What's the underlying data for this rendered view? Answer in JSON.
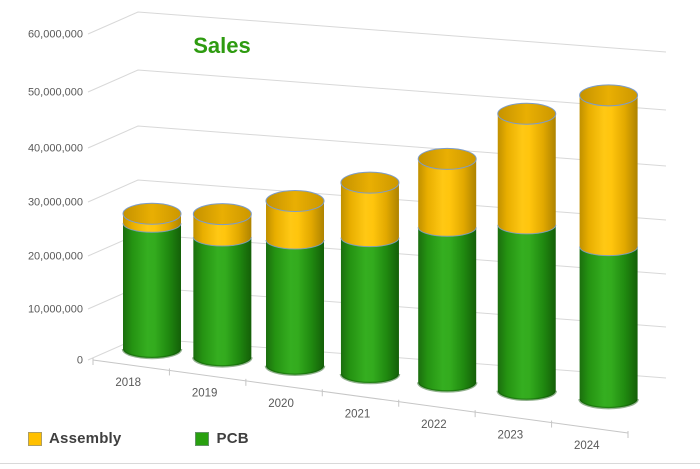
{
  "chart": {
    "title": "Sales",
    "title_color": "#2E9B10"
  },
  "chart_data": {
    "type": "bar",
    "subtype": "3d-stacked-cylinder",
    "title": "Sales",
    "categories": [
      "2018",
      "2019",
      "2020",
      "2021",
      "2022",
      "2023",
      "2024"
    ],
    "series": [
      {
        "name": "PCB",
        "color": "#2CA01C",
        "values": [
          23500000,
          22500000,
          23500000,
          25500000,
          29000000,
          31000000,
          28500000
        ]
      },
      {
        "name": "Assembly",
        "color": "#FFC000",
        "values": [
          1500000,
          4000000,
          7000000,
          10000000,
          12500000,
          20500000,
          28000000
        ]
      }
    ],
    "ylim": [
      0,
      60000000
    ],
    "ytick_interval": 10000000,
    "ytick_labels": [
      "0",
      "10,000,000",
      "20,000,000",
      "30,000,000",
      "40,000,000",
      "50,000,000",
      "60,000,000"
    ],
    "xlabel": "",
    "ylabel": "",
    "grid": true,
    "legend_position": "bottom-left"
  },
  "legend": {
    "items": [
      {
        "label": "Assembly",
        "color": "#FFC000"
      },
      {
        "label": "PCB",
        "color": "#28A00F"
      }
    ]
  }
}
